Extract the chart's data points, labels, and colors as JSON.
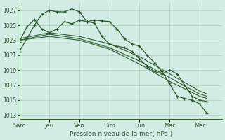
{
  "bg_color": "#d4ede4",
  "grid_color": "#b0ccbb",
  "line_color": "#2d5a2d",
  "xlabel": "Pression niveau de la mer( hPa )",
  "ylim": [
    1012.5,
    1028.0
  ],
  "yticks": [
    1013,
    1015,
    1017,
    1019,
    1021,
    1023,
    1025,
    1027
  ],
  "xtick_labels": [
    "Sam",
    "Jeu",
    "Ven",
    "Dim",
    "Lun",
    "Mar",
    "Mer"
  ],
  "xtick_positions": [
    0,
    2,
    4,
    6,
    8,
    10,
    12
  ],
  "xlim": [
    0,
    13.5
  ],
  "series": [
    {
      "x": [
        0,
        0.5,
        1,
        1.5,
        2,
        2.5,
        3,
        3.5,
        4,
        4.5,
        5,
        5.5,
        6,
        6.5,
        7,
        7.5,
        8,
        8.5,
        9,
        9.5,
        10,
        10.5,
        11,
        11.5,
        12,
        12.5
      ],
      "y": [
        1021.5,
        1023.2,
        1025.0,
        1026.5,
        1027.0,
        1026.8,
        1026.8,
        1027.2,
        1026.8,
        1025.5,
        1025.7,
        1025.6,
        1025.5,
        1024.5,
        1023.2,
        1022.5,
        1022.2,
        1021.0,
        1020.0,
        1018.8,
        1017.2,
        1015.5,
        1015.2,
        1015.0,
        1014.5,
        1013.2
      ],
      "marker": true
    },
    {
      "x": [
        0,
        0.5,
        1,
        1.5,
        2,
        2.5,
        3,
        3.5,
        4,
        4.5,
        5,
        5.5,
        6,
        6.5,
        7,
        7.5,
        8,
        8.5,
        9,
        9.5,
        10,
        10.5,
        11,
        11.5,
        12,
        12.5
      ],
      "y": [
        1022.8,
        1024.8,
        1025.8,
        1024.5,
        1024.0,
        1024.5,
        1025.5,
        1025.2,
        1025.7,
        1025.5,
        1025.3,
        1023.5,
        1022.5,
        1022.2,
        1022.0,
        1021.5,
        1020.5,
        1019.5,
        1018.8,
        1018.5,
        1019.0,
        1018.5,
        1017.0,
        1015.5,
        1015.0,
        1014.8
      ],
      "marker": true
    },
    {
      "x": [
        0,
        2,
        4,
        6,
        8,
        10,
        12,
        12.5
      ],
      "y": [
        1023.0,
        1023.8,
        1023.2,
        1022.0,
        1020.2,
        1018.0,
        1015.8,
        1015.5
      ],
      "marker": false
    },
    {
      "x": [
        0,
        2,
        4,
        6,
        8,
        10,
        12,
        12.5
      ],
      "y": [
        1023.2,
        1024.0,
        1023.5,
        1022.5,
        1020.8,
        1018.5,
        1016.2,
        1015.8
      ],
      "marker": false
    },
    {
      "x": [
        0,
        2,
        4,
        6,
        8,
        10,
        12,
        12.5
      ],
      "y": [
        1023.0,
        1023.5,
        1023.0,
        1021.8,
        1019.8,
        1017.5,
        1015.5,
        1015.2
      ],
      "marker": false
    }
  ]
}
